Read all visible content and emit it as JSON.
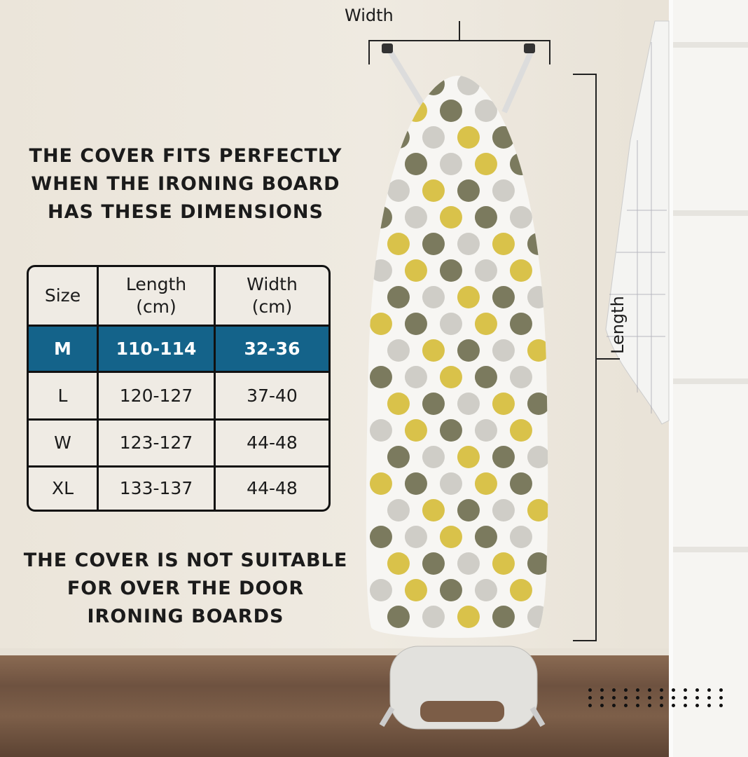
{
  "heading_top": [
    "THE COVER FITS PERFECTLY",
    "WHEN THE IRONING BOARD",
    "HAS THESE DIMENSIONS"
  ],
  "heading_bottom": [
    "THE COVER IS NOT SUITABLE",
    "FOR OVER THE DOOR",
    "IRONING BOARDS"
  ],
  "table": {
    "headers": [
      [
        "Size"
      ],
      [
        "Length",
        "(cm)"
      ],
      [
        "Width",
        "(cm)"
      ]
    ],
    "highlight_color": "#14638a",
    "rows": [
      {
        "size": "M",
        "length": "110-114",
        "width": "32-36",
        "highlighted": true
      },
      {
        "size": "L",
        "length": "120-127",
        "width": "37-40",
        "highlighted": false
      },
      {
        "size": "W",
        "length": "123-127",
        "width": "44-48",
        "highlighted": false
      },
      {
        "size": "XL",
        "length": "133-137",
        "width": "44-48",
        "highlighted": false
      }
    ]
  },
  "dimension_labels": {
    "width": "Width",
    "length": "Length"
  },
  "pattern_colors": [
    "#d9c24a",
    "#7b7a5e",
    "#cfcdc7"
  ]
}
